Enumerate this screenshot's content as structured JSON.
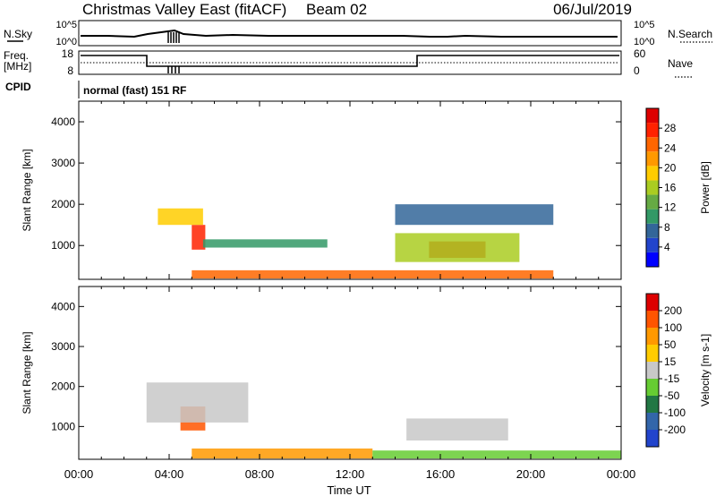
{
  "header": {
    "title": "Christmas Valley East (fitACF)",
    "beam": "Beam 02",
    "date": "06/Jul/2019"
  },
  "summary_panels": {
    "nsky_label": "N.Sky",
    "nsearch_label": "N.Search",
    "nsky_ticks": [
      "10^5",
      "10^0"
    ],
    "nsearch_ticks": [
      "10^5",
      "10^0"
    ],
    "freq_label": "Freq.",
    "freq_unit": "[MHz]",
    "freq_ticks": [
      "18",
      "8"
    ],
    "nave_label": "Nave",
    "nave_ticks": [
      "60",
      "0"
    ],
    "cpid_label": "CPID",
    "cpid_value": "normal (fast) 151 RF"
  },
  "chart_data": [
    {
      "type": "heatmap",
      "panel": "power",
      "ylabel": "Slant Range [km]",
      "y_ticks": [
        1000,
        2000,
        3000,
        4000
      ],
      "ylim": [
        180,
        4500
      ],
      "xlim_hours": [
        0,
        24
      ],
      "colorbar_label": "Power [dB]",
      "colorbar_ticks": [
        "28",
        "24",
        "20",
        "16",
        "12",
        "8",
        "4"
      ],
      "colorbar_colors": [
        "#0000ff",
        "#2244cc",
        "#336699",
        "#339966",
        "#66aa44",
        "#aacc22",
        "#ffcc00",
        "#ff9900",
        "#ff6600",
        "#ff2200",
        "#dd0000"
      ],
      "regions": [
        {
          "t0": 5.0,
          "t1": 5.6,
          "r0": 900,
          "r1": 1500,
          "level": 9
        },
        {
          "t0": 3.5,
          "t1": 5.5,
          "r0": 1500,
          "r1": 1900,
          "level": 6
        },
        {
          "t0": 5.5,
          "t1": 11.0,
          "r0": 950,
          "r1": 1150,
          "level": 3
        },
        {
          "t0": 15.5,
          "t1": 18.0,
          "r0": 700,
          "r1": 1100,
          "level": 10
        },
        {
          "t0": 14.0,
          "t1": 19.5,
          "r0": 600,
          "r1": 1300,
          "level": 5
        },
        {
          "t0": 14.0,
          "t1": 21.0,
          "r0": 1500,
          "r1": 2000,
          "level": 2
        },
        {
          "t0": 5.0,
          "t1": 21.0,
          "r0": 200,
          "r1": 400,
          "level": 8
        }
      ]
    },
    {
      "type": "heatmap",
      "panel": "velocity",
      "ylabel": "Slant Range [km]",
      "y_ticks": [
        1000,
        2000,
        3000,
        4000
      ],
      "ylim": [
        180,
        4500
      ],
      "xlim_hours": [
        0,
        24
      ],
      "colorbar_label": "Velocity [m s-1]",
      "colorbar_ticks": [
        "200",
        "100",
        "50",
        "15",
        "-15",
        "-50",
        "-100",
        "-200"
      ],
      "colorbar_colors": [
        "#2244cc",
        "#3366aa",
        "#227744",
        "#66cc33",
        "#c8c8c8",
        "#ffcc00",
        "#ff9900",
        "#ff5500",
        "#dd0000"
      ],
      "regions": [
        {
          "t0": 4.5,
          "t1": 5.6,
          "r0": 900,
          "r1": 1500,
          "level": 7
        },
        {
          "t0": 3.0,
          "t1": 7.5,
          "r0": 1100,
          "r1": 2100,
          "level": 4
        },
        {
          "t0": 14.5,
          "t1": 19.0,
          "r0": 650,
          "r1": 1200,
          "level": 4
        },
        {
          "t0": 5.0,
          "t1": 13.0,
          "r0": 200,
          "r1": 450,
          "level": 6
        },
        {
          "t0": 13.0,
          "t1": 24.0,
          "r0": 200,
          "r1": 400,
          "level": 3
        }
      ]
    }
  ],
  "time_axis": {
    "labels": [
      "00:00",
      "04:00",
      "08:00",
      "12:00",
      "16:00",
      "20:00",
      "00:00"
    ],
    "xlabel": "Time UT"
  }
}
